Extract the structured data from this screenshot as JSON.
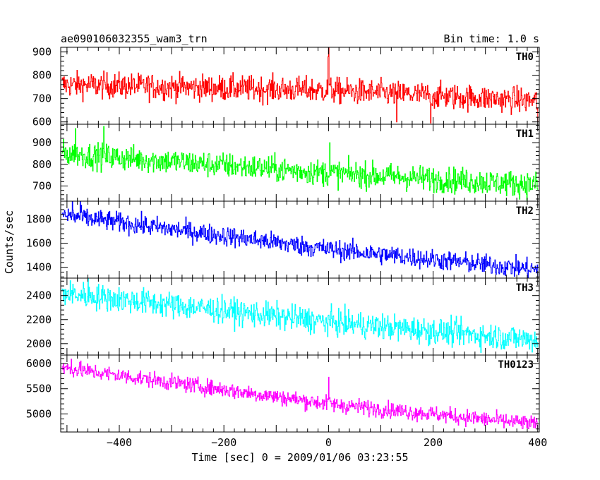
{
  "chart_data": {
    "type": "line",
    "title": "ae090106032355_wam3_trn",
    "bin_time_label": "Bin time: 1.0 s",
    "xlabel": "Time [sec] 0 = 2009/01/06 03:23:55",
    "ylabel": "Counts/sec",
    "xlim": [
      -512,
      403
    ],
    "x_ticks": [
      -400,
      -200,
      0,
      200,
      400
    ],
    "x_tick_labels": [
      "−400",
      "−200",
      "0",
      "200",
      "400"
    ],
    "x_step": 1.0,
    "x_start": -510,
    "x_end": 400,
    "grid": false,
    "legend": "none",
    "panels": [
      {
        "name": "TH0",
        "color": "#ff0000",
        "ylim": [
          590,
          920
        ],
        "yticks": [
          600,
          700,
          800,
          900
        ],
        "ytick_labels": [
          "600",
          "700",
          "800",
          "900"
        ],
        "trend": [
          [
            -510,
            760
          ],
          [
            0,
            735
          ],
          [
            400,
            690
          ]
        ],
        "noise": 28,
        "spikes": [
          [
            0,
            920
          ],
          [
            -1,
            880
          ],
          [
            130,
            600
          ],
          [
            195,
            595
          ],
          [
            400,
            600
          ]
        ]
      },
      {
        "name": "TH1",
        "color": "#00ff00",
        "ylim": [
          630,
          985
        ],
        "yticks": [
          700,
          800,
          900
        ],
        "ytick_labels": [
          "700",
          "800",
          "900"
        ],
        "trend": [
          [
            -510,
            850
          ],
          [
            0,
            760
          ],
          [
            400,
            705
          ]
        ],
        "noise": 30,
        "spikes": [
          [
            -430,
            975
          ],
          [
            -484,
            965
          ],
          [
            2,
            900
          ]
        ]
      },
      {
        "name": "TH2",
        "color": "#0000ff",
        "ylim": [
          1310,
          1950
        ],
        "yticks": [
          1400,
          1600,
          1800
        ],
        "ytick_labels": [
          "1400",
          "1600",
          "1800"
        ],
        "trend": [
          [
            -510,
            1835
          ],
          [
            0,
            1550
          ],
          [
            400,
            1380
          ]
        ],
        "noise": 42,
        "spikes": [
          [
            -490,
            1950
          ],
          [
            -475,
            1945
          ],
          [
            400,
            1320
          ]
        ]
      },
      {
        "name": "TH3",
        "color": "#00ffff",
        "ylim": [
          1905,
          2545
        ],
        "yticks": [
          2000,
          2200,
          2400
        ],
        "ytick_labels": [
          "2000",
          "2200",
          "2400"
        ],
        "trend": [
          [
            -510,
            2420
          ],
          [
            0,
            2180
          ],
          [
            400,
            2030
          ]
        ],
        "noise": 55,
        "spikes": [
          [
            -460,
            2540
          ],
          [
            -460,
            2540
          ]
        ]
      },
      {
        "name": "TH0123",
        "color": "#ff00ff",
        "ylim": [
          4640,
          6170
        ],
        "yticks": [
          5000,
          5500,
          6000
        ],
        "ytick_labels": [
          "5000",
          "5500",
          "6000"
        ],
        "trend": [
          [
            -510,
            5920
          ],
          [
            0,
            5200
          ],
          [
            400,
            4790
          ]
        ],
        "noise": 80,
        "spikes": [
          [
            0,
            5730
          ],
          [
            -492,
            6090
          ],
          [
            400,
            4700
          ]
        ]
      }
    ]
  }
}
